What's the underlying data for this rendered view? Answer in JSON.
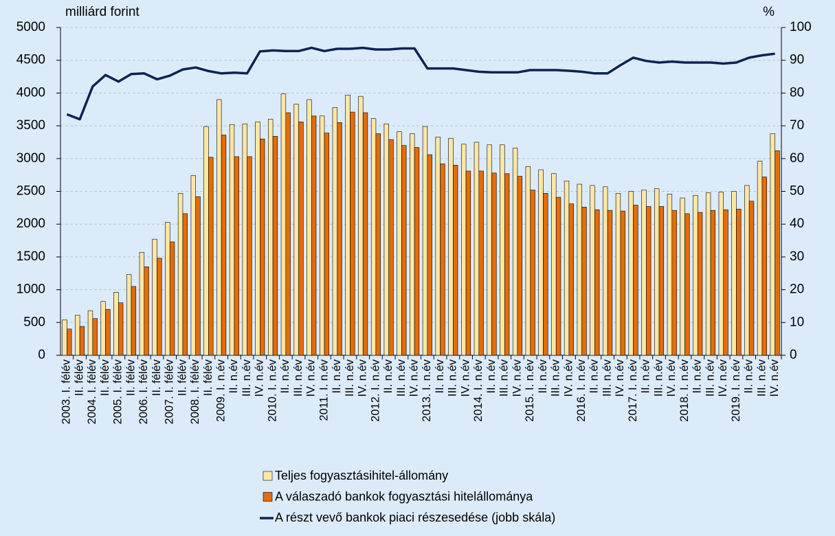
{
  "chart_data": {
    "type": "bar-line",
    "y_label": "milliárd forint",
    "y2_label": "%",
    "categories": [
      "2003. I. félév",
      "II. félév",
      "2004. I. félév",
      "II. félév",
      "2005. I. félév",
      "II. félév",
      "2006. I. félév",
      "II. félév",
      "2007. I. félév",
      "II. félév",
      "2008. I. félév",
      "II. félév",
      "2009. I. n.év",
      "II. n.év",
      "III. n.év",
      "IV. n.év",
      "2010. I. n.év",
      "II. n.év",
      "III. n.év",
      "IV. n.év",
      "2011. I. n.év",
      "II. n.év",
      "III. n.év",
      "IV. n.év",
      "2012. I. n.év",
      "II. n.év",
      "III. n.év",
      "IV. n.év",
      "2013. I. n.év",
      "II. n.év",
      "III. n.év",
      "IV. n.év",
      "2014. I. n.év",
      "II. n.év",
      "III. n.év",
      "IV. n.év",
      "2015. I. n.év",
      "II. n.év",
      "III. n.év",
      "IV. n.év",
      "2016. I. n.év",
      "II. n.év",
      "III. n.év",
      "IV. n.év",
      "2017. I. n.év",
      "II. n.év",
      "III. n.év",
      "IV. n.év",
      "2018. I. n.év",
      "II. n.év",
      "III. n.év",
      "IV. n.év",
      "2019. I. n.év",
      "II. n.év",
      "III. n.év",
      "IV. n.év"
    ],
    "series": [
      {
        "name": "Teljes fogyasztásihitel-állomány",
        "kind": "bar",
        "color": "#fde7a6",
        "values": [
          540,
          610,
          680,
          820,
          960,
          1230,
          1570,
          1770,
          2030,
          2470,
          2740,
          3490,
          3900,
          3520,
          3530,
          3560,
          3600,
          3990,
          3830,
          3900,
          3650,
          3780,
          3970,
          3950,
          3610,
          3530,
          3410,
          3380,
          3490,
          3330,
          3310,
          3220,
          3250,
          3210,
          3210,
          3160,
          2880,
          2830,
          2770,
          2660,
          2610,
          2590,
          2570,
          2470,
          2500,
          2520,
          2540,
          2460,
          2400,
          2440,
          2480,
          2490,
          2500,
          2590,
          2960,
          3380
        ]
      },
      {
        "name": "A válaszadó bankok fogyasztási hitelállománya",
        "kind": "bar",
        "color": "#e46c0a",
        "values": [
          400,
          440,
          560,
          700,
          800,
          1050,
          1350,
          1480,
          1730,
          2160,
          2420,
          3020,
          3360,
          3030,
          3030,
          3300,
          3340,
          3700,
          3560,
          3650,
          3390,
          3550,
          3710,
          3700,
          3380,
          3290,
          3200,
          3170,
          3060,
          2920,
          2900,
          2810,
          2810,
          2780,
          2770,
          2730,
          2520,
          2470,
          2410,
          2310,
          2260,
          2220,
          2210,
          2200,
          2290,
          2270,
          2270,
          2210,
          2160,
          2180,
          2210,
          2220,
          2230,
          2350,
          2720,
          3120
        ]
      },
      {
        "name": "A részt vevő bankok piaci részesedése (jobb skála)",
        "kind": "line",
        "axis": "y2",
        "color": "#0c2352",
        "values": [
          73.5,
          72,
          82,
          85.5,
          83.5,
          85.8,
          86,
          84.2,
          85.3,
          87.2,
          87.8,
          86.7,
          86,
          86.2,
          86,
          92.7,
          93,
          92.8,
          92.8,
          93.8,
          92.8,
          93.5,
          93.5,
          93.8,
          93.3,
          93.3,
          93.6,
          93.6,
          87.5,
          87.5,
          87.5,
          87,
          86.5,
          86.3,
          86.3,
          86.3,
          87,
          87,
          87,
          86.8,
          86.5,
          86,
          86,
          88.5,
          90.8,
          89.8,
          89.3,
          89.6,
          89.3,
          89.3,
          89.3,
          89,
          89.3,
          90.8,
          91.5,
          92
        ]
      }
    ],
    "ylim": [
      0,
      5000
    ],
    "yticks": [
      0,
      500,
      1000,
      1500,
      2000,
      2500,
      3000,
      3500,
      4000,
      4500,
      5000
    ],
    "y2lim": [
      0,
      100
    ],
    "y2ticks": [
      0,
      10,
      20,
      30,
      40,
      50,
      60,
      70,
      80,
      90,
      100
    ],
    "grid": true,
    "legend": "bottom"
  }
}
